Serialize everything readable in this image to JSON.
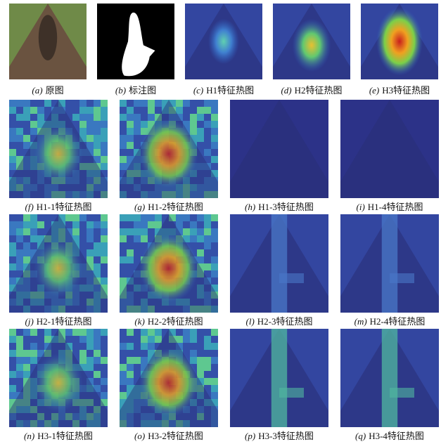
{
  "figure": {
    "panels": [
      {
        "label": "(a)",
        "text": "原图"
      },
      {
        "label": "(b)",
        "text": "标注图"
      },
      {
        "label": "(c)",
        "text": "H1特征热图"
      },
      {
        "label": "(d)",
        "text": "H2特征热图"
      },
      {
        "label": "(e)",
        "text": "H3特征热图"
      },
      {
        "label": "(f)",
        "text": "H1-1特征热图"
      },
      {
        "label": "(g)",
        "text": "H1-2特征热图"
      },
      {
        "label": "(h)",
        "text": "H1-3特征热图"
      },
      {
        "label": "(i)",
        "text": "H1-4特征热图"
      },
      {
        "label": "(j)",
        "text": "H2-1特征热图"
      },
      {
        "label": "(k)",
        "text": "H2-2特征热图"
      },
      {
        "label": "(l)",
        "text": "H2-3特征热图"
      },
      {
        "label": "(m)",
        "text": "H2-4特征热图"
      },
      {
        "label": "(n)",
        "text": "H3-1特征热图"
      },
      {
        "label": "(o)",
        "text": "H3-2特征热图"
      },
      {
        "label": "(p)",
        "text": "H3-3特征热图"
      },
      {
        "label": "(q)",
        "text": "H3-4特征热图"
      }
    ]
  }
}
